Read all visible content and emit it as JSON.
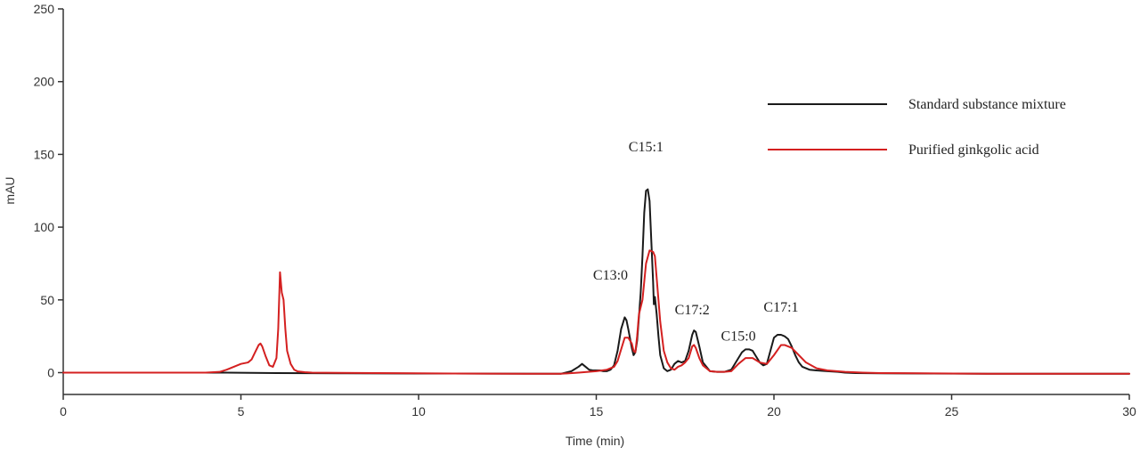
{
  "chart_data": {
    "type": "line",
    "title": "",
    "xlabel": "Time (min)",
    "ylabel": "mAU",
    "xlim": [
      0,
      30
    ],
    "ylim": [
      -15,
      250
    ],
    "xticks": [
      0,
      5,
      10,
      15,
      20,
      25,
      30
    ],
    "yticks": [
      0,
      50,
      100,
      150,
      200,
      250
    ],
    "grid": false,
    "legend_position": "top-right",
    "series": [
      {
        "name": "Standard substance mixture",
        "color": "#1a1a1a",
        "x": [
          0,
          4.4,
          6.0,
          8.0,
          10.0,
          12.0,
          14.0,
          14.3,
          14.5,
          14.6,
          14.7,
          14.8,
          14.9,
          15.0,
          15.1,
          15.2,
          15.3,
          15.4,
          15.5,
          15.6,
          15.7,
          15.8,
          15.85,
          15.9,
          16.0,
          16.05,
          16.1,
          16.15,
          16.2,
          16.25,
          16.3,
          16.35,
          16.4,
          16.45,
          16.5,
          16.55,
          16.6,
          16.62,
          16.65,
          16.7,
          16.75,
          16.8,
          16.9,
          17.0,
          17.1,
          17.2,
          17.3,
          17.4,
          17.5,
          17.6,
          17.7,
          17.75,
          17.8,
          17.9,
          18.0,
          18.2,
          18.4,
          18.6,
          18.8,
          19.0,
          19.1,
          19.2,
          19.3,
          19.4,
          19.5,
          19.6,
          19.7,
          19.8,
          19.9,
          20.0,
          20.1,
          20.2,
          20.3,
          20.4,
          20.5,
          20.6,
          20.7,
          20.8,
          21.0,
          21.2,
          21.5,
          21.8,
          22.0,
          22.3,
          23.0,
          26.0,
          30.0
        ],
        "y": [
          0,
          0,
          -0.3,
          -0.5,
          -0.6,
          -0.7,
          -0.8,
          1,
          4,
          6,
          4,
          2,
          1.5,
          1.5,
          1.5,
          1,
          1,
          2,
          5,
          15,
          30,
          38,
          36,
          30,
          17,
          12,
          14,
          22,
          38,
          55,
          80,
          110,
          125,
          126,
          118,
          90,
          62,
          47,
          52,
          40,
          25,
          12,
          3,
          1,
          2,
          6,
          8,
          7,
          8,
          15,
          26,
          29,
          28,
          18,
          7,
          1,
          0.5,
          0.5,
          2,
          10,
          14,
          16,
          16,
          15,
          11,
          7,
          5,
          6,
          15,
          24,
          26,
          26,
          25,
          23,
          18,
          12,
          7,
          4,
          2,
          1.5,
          1,
          0.5,
          0,
          -0.3,
          -0.5,
          -0.8,
          -0.8
        ]
      },
      {
        "name": "Purified ginkgolic acid",
        "color": "#d42020",
        "x": [
          0,
          4.0,
          4.4,
          4.6,
          4.8,
          5.0,
          5.2,
          5.3,
          5.4,
          5.5,
          5.55,
          5.6,
          5.7,
          5.8,
          5.9,
          6.0,
          6.05,
          6.1,
          6.15,
          6.2,
          6.25,
          6.3,
          6.4,
          6.5,
          6.6,
          6.8,
          7.0,
          10.0,
          13.0,
          14.0,
          14.5,
          15.0,
          15.3,
          15.5,
          15.6,
          15.7,
          15.8,
          15.9,
          16.0,
          16.05,
          16.1,
          16.15,
          16.2,
          16.3,
          16.4,
          16.5,
          16.6,
          16.65,
          16.7,
          16.8,
          16.9,
          17.0,
          17.1,
          17.2,
          17.3,
          17.4,
          17.5,
          17.6,
          17.7,
          17.75,
          17.8,
          17.9,
          18.0,
          18.2,
          18.4,
          18.6,
          18.8,
          19.0,
          19.2,
          19.4,
          19.6,
          19.8,
          20.0,
          20.2,
          20.3,
          20.5,
          20.7,
          20.9,
          21.2,
          21.5,
          22.0,
          22.5,
          23.0,
          26.0,
          30.0
        ],
        "y": [
          0,
          0,
          0.5,
          2,
          4,
          6,
          7,
          9,
          14,
          19,
          20,
          18,
          11,
          5,
          4,
          10,
          30,
          69,
          55,
          50,
          30,
          15,
          6,
          2,
          0.8,
          0.3,
          0,
          -0.5,
          -0.8,
          -0.8,
          0,
          1,
          2,
          4,
          8,
          16,
          24,
          24,
          20,
          15,
          14,
          25,
          40,
          50,
          75,
          84,
          83,
          80,
          65,
          35,
          15,
          7,
          3,
          2,
          4,
          5,
          7,
          10,
          18,
          19,
          17,
          10,
          5,
          1,
          0.5,
          0.5,
          1,
          6,
          10,
          10,
          7,
          6,
          12,
          19,
          19,
          17,
          12,
          7,
          3,
          1.5,
          0.5,
          0,
          -0.3,
          -0.8,
          -0.8
        ]
      }
    ],
    "peak_labels": [
      {
        "text": "C15:1",
        "x": 16.4,
        "y": 152
      },
      {
        "text": "C13:0",
        "x": 15.4,
        "y": 64
      },
      {
        "text": "C17:2",
        "x": 17.7,
        "y": 40
      },
      {
        "text": "C15:0",
        "x": 19.0,
        "y": 22
      },
      {
        "text": "C17:1",
        "x": 20.2,
        "y": 42
      }
    ]
  }
}
